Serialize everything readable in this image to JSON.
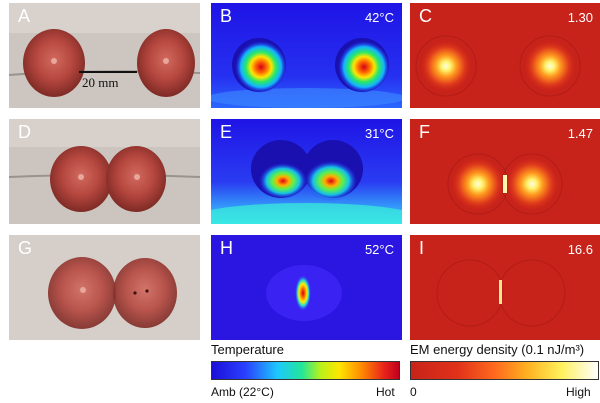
{
  "panels": [
    {
      "label": "A",
      "value": ""
    },
    {
      "label": "B",
      "value": "42°C"
    },
    {
      "label": "C",
      "value": "1.30"
    },
    {
      "label": "D",
      "value": ""
    },
    {
      "label": "E",
      "value": "31°C"
    },
    {
      "label": "F",
      "value": "1.47"
    },
    {
      "label": "G",
      "value": ""
    },
    {
      "label": "H",
      "value": "52°C"
    },
    {
      "label": "I",
      "value": "16.6"
    }
  ],
  "scale_bar": "20 mm",
  "temperature_bar": {
    "title": "Temperature",
    "min_label": "Amb (22°C)",
    "max_label": "Hot"
  },
  "em_bar": {
    "title": "EM energy density (0.1 nJ/m³)",
    "min_label": "0",
    "max_label": "High"
  },
  "colors": {
    "photo_bg": "#cfc7c1",
    "thermal_bg": "#2a1ee6",
    "em_bg": "#cc2418"
  }
}
